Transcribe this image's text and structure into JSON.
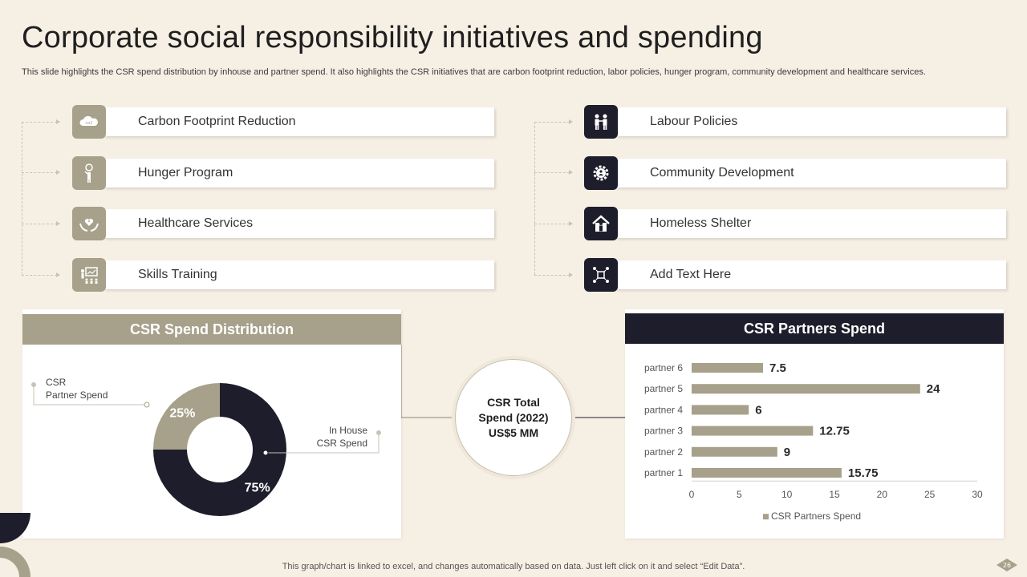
{
  "title": "Corporate social responsibility initiatives and spending",
  "subtitle": "This slide highlights the CSR spend distribution by inhouse and partner spend. It also highlights the CSR initiatives that are carbon footprint reduction, labor policies, hunger program, community development and healthcare services.",
  "initiatives_left": [
    {
      "label": "Carbon Footprint Reduction",
      "icon": "cloud-co2-icon"
    },
    {
      "label": "Hunger Program",
      "icon": "food-person-icon"
    },
    {
      "label": "Healthcare Services",
      "icon": "heart-hands-icon"
    },
    {
      "label": "Skills Training",
      "icon": "training-board-icon"
    }
  ],
  "initiatives_right": [
    {
      "label": "Labour Policies",
      "icon": "workers-icon"
    },
    {
      "label": "Community Development",
      "icon": "community-gear-icon"
    },
    {
      "label": "Homeless Shelter",
      "icon": "house-person-icon"
    },
    {
      "label": "Add Text Here",
      "icon": "network-icon"
    }
  ],
  "center": {
    "line1": "CSR Total",
    "line2": "Spend (2022)",
    "line3": "US$5 MM"
  },
  "colors": {
    "tan": "#a7a08a",
    "dark": "#1e1d2b",
    "background": "#f6efe4"
  },
  "footer": "This graph/chart is linked to excel,  and changes automatically based on data. Just left click on it and select “Edit Data”.",
  "page_number": "26",
  "chart_data": [
    {
      "type": "pie",
      "title": "CSR Spend Distribution",
      "donut": true,
      "slices": [
        {
          "label": "CSR Partner Spend",
          "value": 25,
          "display": "25%",
          "color": "#a7a08a"
        },
        {
          "label": "In House CSR Spend",
          "value": 75,
          "display": "75%",
          "color": "#1e1d2b"
        }
      ],
      "callouts": {
        "partner_line1": "CSR",
        "partner_line2": "Partner Spend",
        "inhouse_line1": "In House",
        "inhouse_line2": "CSR Spend"
      }
    },
    {
      "type": "bar",
      "orientation": "horizontal",
      "title": "CSR Partners Spend",
      "categories": [
        "partner 1",
        "partner 2",
        "partner 3",
        "partner 4",
        "partner 5",
        "partner 6"
      ],
      "series": [
        {
          "name": "CSR Partners Spend",
          "values": [
            15.75,
            9,
            12.75,
            6,
            24,
            7.5
          ],
          "labels": [
            "15.75",
            "9",
            "12.75",
            "6",
            "24",
            "7.5"
          ],
          "color": "#a7a08a"
        }
      ],
      "xlim": [
        0,
        30
      ],
      "xticks": [
        "0",
        "5",
        "10",
        "15",
        "20",
        "25",
        "30"
      ],
      "legend": "bottom",
      "grid": false
    }
  ]
}
